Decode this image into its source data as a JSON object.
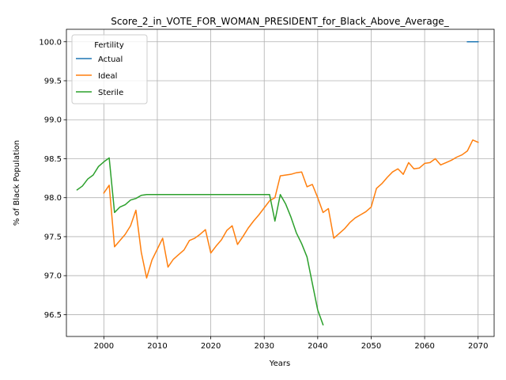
{
  "chart_data": {
    "type": "line",
    "title": "Score_2_in_VOTE_FOR_WOMAN_PRESIDENT_for_Black_Above_Average_",
    "xlabel": "Years",
    "ylabel": "% of Black Population",
    "xlim": [
      1993,
      2073
    ],
    "ylim": [
      96.22,
      100.16
    ],
    "x_ticks": [
      2000,
      2010,
      2020,
      2030,
      2040,
      2050,
      2060,
      2070
    ],
    "y_ticks": [
      96.5,
      97.0,
      97.5,
      98.0,
      98.5,
      99.0,
      99.5,
      100.0
    ],
    "x_tick_labels": [
      "2000",
      "2010",
      "2020",
      "2030",
      "2040",
      "2050",
      "2060",
      "2070"
    ],
    "y_tick_labels": [
      "96.5",
      "97.0",
      "97.5",
      "98.0",
      "98.5",
      "99.0",
      "99.5",
      "100.0"
    ],
    "grid": true,
    "legend": {
      "title": "Fertility",
      "placement": "top-left"
    },
    "series": [
      {
        "name": "Actual",
        "color": "#1f77b4",
        "x": [
          2068,
          2069,
          2070
        ],
        "y": [
          100.0,
          100.0,
          100.0
        ]
      },
      {
        "name": "Ideal",
        "color": "#ff7f0e",
        "x": [
          2000,
          2001,
          2002,
          2003,
          2004,
          2005,
          2006,
          2007,
          2008,
          2009,
          2010,
          2011,
          2012,
          2013,
          2014,
          2015,
          2016,
          2017,
          2018,
          2019,
          2020,
          2021,
          2022,
          2023,
          2024,
          2025,
          2026,
          2027,
          2028,
          2029,
          2030,
          2031,
          2032,
          2033,
          2034,
          2035,
          2036,
          2037,
          2038,
          2039,
          2040,
          2041,
          2042,
          2043,
          2044,
          2045,
          2046,
          2047,
          2048,
          2049,
          2050,
          2051,
          2052,
          2053,
          2054,
          2055,
          2056,
          2057,
          2058,
          2059,
          2060,
          2061,
          2062,
          2063,
          2064,
          2065,
          2066,
          2067,
          2068,
          2069,
          2070
        ],
        "y": [
          98.06,
          98.16,
          97.37,
          97.45,
          97.53,
          97.64,
          97.84,
          97.3,
          96.97,
          97.2,
          97.34,
          97.48,
          97.11,
          97.21,
          97.27,
          97.33,
          97.45,
          97.48,
          97.53,
          97.59,
          97.29,
          97.38,
          97.46,
          97.58,
          97.64,
          97.4,
          97.5,
          97.61,
          97.7,
          97.78,
          97.87,
          97.96,
          98.0,
          98.28,
          98.29,
          98.3,
          98.32,
          98.33,
          98.14,
          98.17,
          98.0,
          97.81,
          97.86,
          97.48,
          97.54,
          97.6,
          97.68,
          97.74,
          97.78,
          97.82,
          97.88,
          98.12,
          98.18,
          98.26,
          98.33,
          98.37,
          98.3,
          98.45,
          98.37,
          98.38,
          98.44,
          98.45,
          98.5,
          98.42,
          98.45,
          98.48,
          98.52,
          98.55,
          98.6,
          98.74,
          98.71
        ]
      },
      {
        "name": "Sterile",
        "color": "#2ca02c",
        "x": [
          1995,
          1996,
          1997,
          1998,
          1999,
          2000,
          2001,
          2002,
          2003,
          2004,
          2005,
          2006,
          2007,
          2008,
          2009,
          2010,
          2011,
          2012,
          2013,
          2014,
          2015,
          2016,
          2017,
          2018,
          2019,
          2020,
          2021,
          2022,
          2023,
          2024,
          2025,
          2026,
          2027,
          2028,
          2029,
          2030,
          2031,
          2032,
          2033,
          2034,
          2035,
          2036,
          2037,
          2038,
          2039,
          2040,
          2041
        ],
        "y": [
          98.1,
          98.15,
          98.24,
          98.29,
          98.4,
          98.46,
          98.51,
          97.81,
          97.88,
          97.91,
          97.97,
          97.99,
          98.03,
          98.04,
          98.04,
          98.04,
          98.04,
          98.04,
          98.04,
          98.04,
          98.04,
          98.04,
          98.04,
          98.04,
          98.04,
          98.04,
          98.04,
          98.04,
          98.04,
          98.04,
          98.04,
          98.04,
          98.04,
          98.04,
          98.04,
          98.04,
          98.04,
          97.7,
          98.04,
          97.92,
          97.75,
          97.55,
          97.41,
          97.24,
          96.9,
          96.56,
          96.37
        ]
      }
    ]
  }
}
